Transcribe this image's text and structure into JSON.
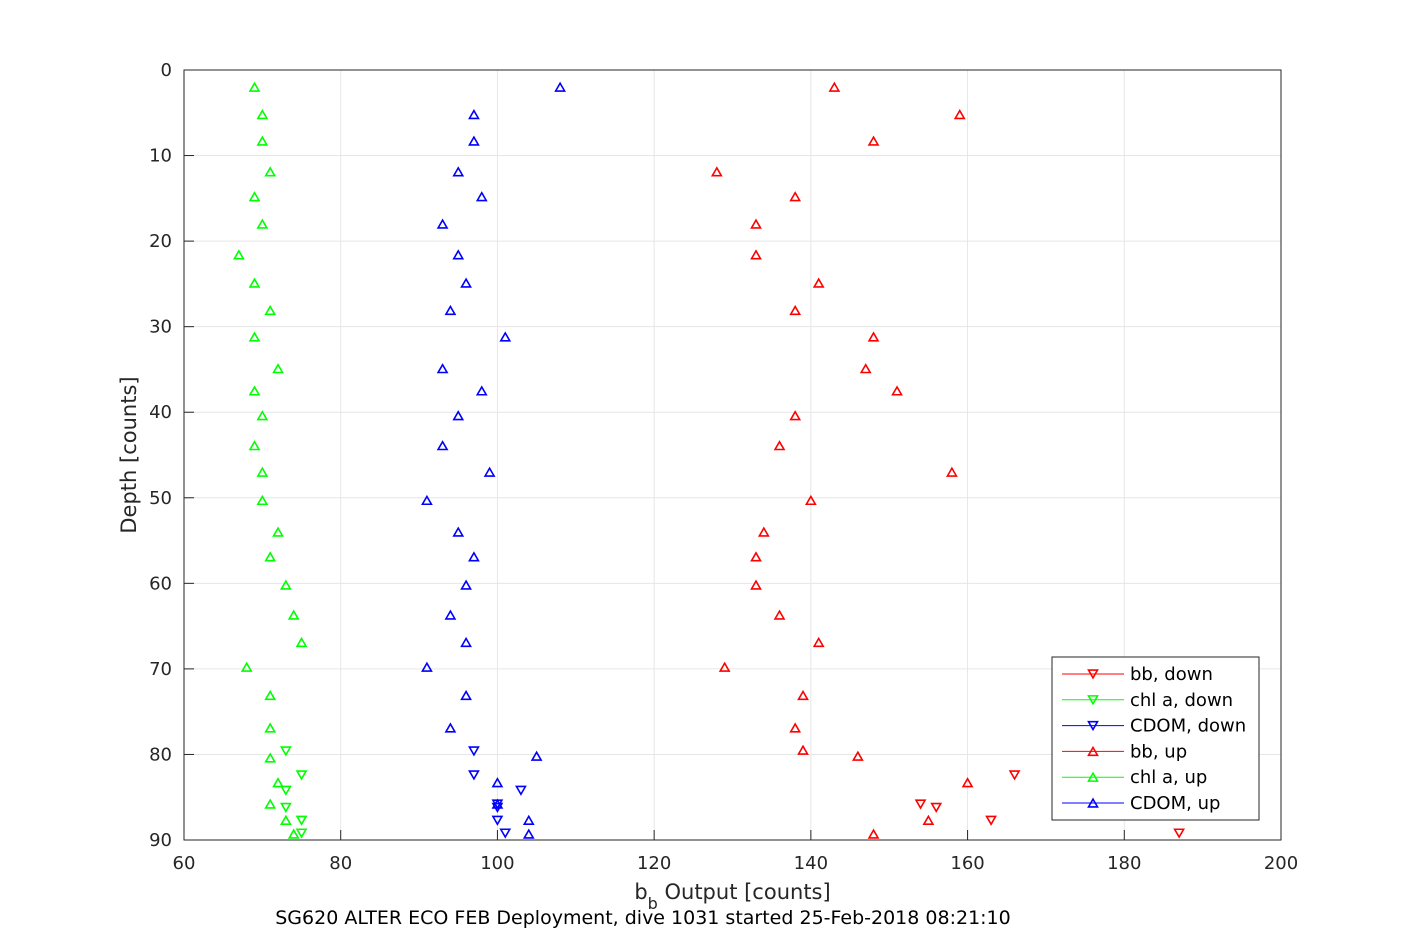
{
  "chart_data": {
    "type": "scatter",
    "xlabel_main": "b",
    "xlabel_sub": "b",
    "xlabel_rest": " Output [counts]",
    "ylabel": "Depth [counts]",
    "caption": "SG620 ALTER ECO FEB Deployment, dive 1031 started 25-Feb-2018 08:21:10",
    "xlim": [
      60,
      200
    ],
    "ylim": [
      0,
      90
    ],
    "y_reversed": true,
    "grid": true,
    "legend_position": "bottom-right",
    "x_ticks": [
      "60",
      "80",
      "100",
      "120",
      "140",
      "160",
      "180",
      "200"
    ],
    "y_ticks": [
      "0",
      "10",
      "20",
      "30",
      "40",
      "50",
      "60",
      "70",
      "80",
      "90"
    ],
    "series": [
      {
        "name": "bb, down",
        "color": "#ff0000",
        "marker": "triangle-down",
        "points": [
          [
            166,
            82.4
          ],
          [
            163,
            87.7
          ],
          [
            156,
            86.2
          ],
          [
            154,
            85.8
          ],
          [
            187,
            89.2
          ]
        ]
      },
      {
        "name": "chl a, down",
        "color": "#00ff00",
        "marker": "triangle-down",
        "points": [
          [
            73,
            79.6
          ],
          [
            75,
            82.4
          ],
          [
            73,
            84.2
          ],
          [
            73,
            86.2
          ],
          [
            75,
            87.7
          ],
          [
            75,
            89.2
          ]
        ]
      },
      {
        "name": "CDOM, down",
        "color": "#0000ff",
        "marker": "triangle-down",
        "points": [
          [
            97,
            79.6
          ],
          [
            97,
            82.4
          ],
          [
            103,
            84.2
          ],
          [
            100,
            85.8
          ],
          [
            100,
            86.2
          ],
          [
            100,
            87.7
          ],
          [
            101,
            89.2
          ]
        ]
      },
      {
        "name": "bb, up",
        "color": "#ff0000",
        "marker": "triangle-up",
        "points": [
          [
            143,
            2
          ],
          [
            159,
            5.2
          ],
          [
            148,
            8.3
          ],
          [
            128,
            11.9
          ],
          [
            138,
            14.8
          ],
          [
            133,
            18
          ],
          [
            133,
            21.6
          ],
          [
            141,
            24.9
          ],
          [
            138,
            28.1
          ],
          [
            148,
            31.2
          ],
          [
            147,
            34.9
          ],
          [
            151,
            37.5
          ],
          [
            138,
            40.4
          ],
          [
            136,
            43.9
          ],
          [
            158,
            47
          ],
          [
            140,
            50.3
          ],
          [
            134,
            54
          ],
          [
            133,
            56.9
          ],
          [
            133,
            60.2
          ],
          [
            136,
            63.7
          ],
          [
            141,
            66.9
          ],
          [
            129,
            69.8
          ],
          [
            139,
            73.1
          ],
          [
            138,
            76.9
          ],
          [
            139,
            79.5
          ],
          [
            146,
            80.2
          ],
          [
            160,
            83.3
          ],
          [
            155,
            87.7
          ],
          [
            148,
            89.3
          ]
        ]
      },
      {
        "name": "chl a, up",
        "color": "#00ff00",
        "marker": "triangle-up",
        "points": [
          [
            69,
            2
          ],
          [
            70,
            5.2
          ],
          [
            70,
            8.3
          ],
          [
            71,
            11.9
          ],
          [
            69,
            14.8
          ],
          [
            70,
            18
          ],
          [
            67,
            21.6
          ],
          [
            69,
            24.9
          ],
          [
            71,
            28.1
          ],
          [
            69,
            31.2
          ],
          [
            72,
            34.9
          ],
          [
            69,
            37.5
          ],
          [
            70,
            40.4
          ],
          [
            69,
            43.9
          ],
          [
            70,
            47
          ],
          [
            70,
            50.3
          ],
          [
            72,
            54
          ],
          [
            71,
            56.9
          ],
          [
            73,
            60.2
          ],
          [
            74,
            63.7
          ],
          [
            75,
            66.9
          ],
          [
            68,
            69.8
          ],
          [
            71,
            73.1
          ],
          [
            71,
            76.9
          ],
          [
            71,
            80.4
          ],
          [
            72,
            83.3
          ],
          [
            71,
            85.8
          ],
          [
            73,
            87.7
          ],
          [
            74,
            89.3
          ]
        ]
      },
      {
        "name": "CDOM, up",
        "color": "#0000ff",
        "marker": "triangle-up",
        "points": [
          [
            108,
            2
          ],
          [
            97,
            5.2
          ],
          [
            97,
            8.3
          ],
          [
            95,
            11.9
          ],
          [
            98,
            14.8
          ],
          [
            93,
            18
          ],
          [
            95,
            21.6
          ],
          [
            96,
            24.9
          ],
          [
            94,
            28.1
          ],
          [
            101,
            31.2
          ],
          [
            93,
            34.9
          ],
          [
            98,
            37.5
          ],
          [
            95,
            40.4
          ],
          [
            93,
            43.9
          ],
          [
            99,
            47
          ],
          [
            91,
            50.3
          ],
          [
            95,
            54
          ],
          [
            97,
            56.9
          ],
          [
            96,
            60.2
          ],
          [
            94,
            63.7
          ],
          [
            96,
            66.9
          ],
          [
            91,
            69.8
          ],
          [
            96,
            73.1
          ],
          [
            94,
            76.9
          ],
          [
            105,
            80.2
          ],
          [
            100,
            83.3
          ],
          [
            100,
            85.8
          ],
          [
            104,
            87.7
          ],
          [
            104,
            89.3
          ]
        ]
      }
    ]
  }
}
